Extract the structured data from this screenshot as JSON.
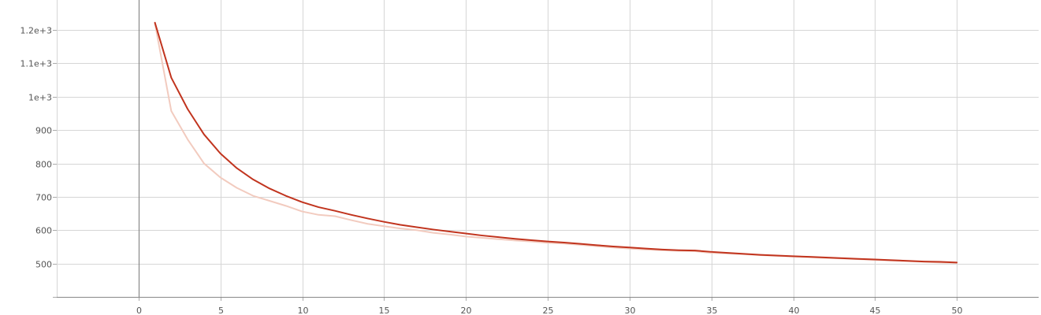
{
  "chart_data": {
    "type": "line",
    "title": "",
    "xlabel": "",
    "ylabel": "",
    "xlim": [
      -5,
      55
    ],
    "ylim": [
      400,
      1290
    ],
    "grid": true,
    "legend": "none",
    "x_ticks": [
      0,
      5,
      10,
      15,
      20,
      25,
      30,
      35,
      40,
      45,
      50
    ],
    "x_tick_labels": [
      "0",
      "5",
      "10",
      "15",
      "20",
      "25",
      "30",
      "35",
      "40",
      "45",
      "50"
    ],
    "y_ticks": [
      500,
      600,
      700,
      800,
      900,
      1000,
      1100,
      1200
    ],
    "y_tick_labels": [
      "500",
      "600",
      "700",
      "800",
      "900",
      "1e+3",
      "1.1e+3",
      "1.2e+3"
    ],
    "series": [
      {
        "role": "raw",
        "color": "#f2cbbf",
        "x": [
          1,
          2,
          3,
          4,
          5,
          6,
          7,
          8,
          9,
          10,
          11,
          12,
          13,
          14,
          15,
          16,
          17,
          18,
          19,
          20,
          21,
          22,
          23,
          24,
          25,
          26,
          27,
          28,
          29,
          30,
          31,
          32,
          33,
          34,
          35,
          36,
          37,
          38,
          39,
          40,
          41,
          42,
          43,
          44,
          45,
          46,
          47,
          48,
          49,
          50
        ],
        "values": [
          1220,
          957,
          872,
          800,
          758,
          727,
          703,
          688,
          673,
          656,
          646,
          642,
          630,
          619,
          612,
          605,
          600,
          592,
          587,
          581,
          577,
          573,
          569,
          566,
          562,
          560,
          556,
          552,
          548,
          545,
          542,
          540,
          538,
          537,
          532,
          530,
          528,
          525,
          523,
          521,
          519,
          517,
          515,
          513,
          511,
          509,
          507,
          505,
          503,
          502
        ]
      },
      {
        "role": "smoothed",
        "color": "#c1341e",
        "x": [
          1,
          2,
          3,
          4,
          5,
          6,
          7,
          8,
          9,
          10,
          11,
          12,
          13,
          14,
          15,
          16,
          17,
          18,
          19,
          20,
          21,
          22,
          23,
          24,
          25,
          26,
          27,
          28,
          29,
          30,
          31,
          32,
          33,
          34,
          35,
          36,
          37,
          38,
          39,
          40,
          41,
          42,
          43,
          44,
          45,
          46,
          47,
          48,
          49,
          50
        ],
        "values": [
          1222,
          1057,
          963,
          887,
          830,
          786,
          752,
          725,
          703,
          684,
          669,
          658,
          646,
          635,
          625,
          616,
          609,
          602,
          596,
          590,
          584,
          579,
          574,
          570,
          566,
          563,
          559,
          555,
          551,
          548,
          545,
          542,
          540,
          539,
          535,
          532,
          529,
          526,
          524,
          522,
          520,
          518,
          516,
          514,
          512,
          510,
          508,
          506,
          505,
          503
        ]
      }
    ]
  }
}
